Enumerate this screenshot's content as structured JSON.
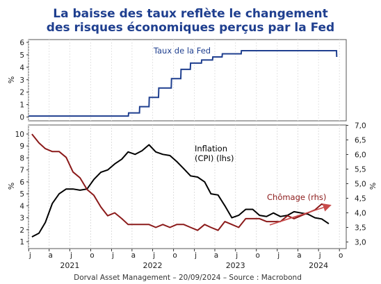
{
  "title_line1": "La baisse des taux reflète le changement",
  "title_line2": "des risques économiques perçus par la Fed",
  "source": "Dorval Asset Management – 20/09/2024 –  Source : Macrobond",
  "colors": {
    "title": "#1f3f8f",
    "fed": "#1f3f8f",
    "inflation": "#000000",
    "unemployment": "#8b1a1a",
    "arrow": "#c84b4b"
  },
  "chart_data": [
    {
      "type": "line",
      "panel": "top",
      "ylabel": "%",
      "ylim": [
        0,
        6
      ],
      "yticks": [
        0,
        1,
        2,
        3,
        4,
        5,
        6
      ],
      "series": [
        {
          "name": "Taux de la Fed",
          "points": [
            [
              "2021-01-01",
              0.08
            ],
            [
              "2022-03-16",
              0.08
            ],
            [
              "2022-03-17",
              0.33
            ],
            [
              "2022-05-04",
              0.33
            ],
            [
              "2022-05-05",
              0.83
            ],
            [
              "2022-06-15",
              0.83
            ],
            [
              "2022-06-16",
              1.58
            ],
            [
              "2022-07-27",
              1.58
            ],
            [
              "2022-07-28",
              2.33
            ],
            [
              "2022-09-21",
              2.33
            ],
            [
              "2022-09-22",
              3.08
            ],
            [
              "2022-11-02",
              3.08
            ],
            [
              "2022-11-03",
              3.83
            ],
            [
              "2022-12-14",
              3.83
            ],
            [
              "2022-12-15",
              4.33
            ],
            [
              "2023-02-01",
              4.33
            ],
            [
              "2023-02-02",
              4.58
            ],
            [
              "2023-03-22",
              4.58
            ],
            [
              "2023-03-23",
              4.83
            ],
            [
              "2023-05-03",
              4.83
            ],
            [
              "2023-05-04",
              5.08
            ],
            [
              "2023-07-26",
              5.08
            ],
            [
              "2023-07-27",
              5.33
            ],
            [
              "2024-09-18",
              5.33
            ],
            [
              "2024-09-19",
              4.83
            ]
          ]
        }
      ]
    },
    {
      "type": "line",
      "panel": "bottom",
      "ylabel": "%",
      "ylim": [
        0.5,
        10
      ],
      "yticks": [
        1,
        2,
        3,
        4,
        5,
        6,
        7,
        8,
        9,
        10
      ],
      "y2label": "%",
      "y2lim": [
        2.9,
        7.1
      ],
      "y2ticks": [
        "3,0",
        "3,5",
        "4,0",
        "4,5",
        "5,0",
        "5,5",
        "6,0",
        "6,5",
        "7,0"
      ],
      "x_month_letters": [
        "j",
        "a",
        "j",
        "o",
        "j",
        "a",
        "j",
        "o",
        "j",
        "a",
        "j",
        "o",
        "j",
        "a",
        "j",
        "o"
      ],
      "x_years": [
        "2021",
        "2022",
        "2023",
        "2024"
      ],
      "series": [
        {
          "name": "Inflation (CPI) (lhs)",
          "axis": "left",
          "x": [
            "2021-01",
            "2021-02",
            "2021-03",
            "2021-04",
            "2021-05",
            "2021-06",
            "2021-07",
            "2021-08",
            "2021-09",
            "2021-10",
            "2021-11",
            "2021-12",
            "2022-01",
            "2022-02",
            "2022-03",
            "2022-04",
            "2022-05",
            "2022-06",
            "2022-07",
            "2022-08",
            "2022-09",
            "2022-10",
            "2022-11",
            "2022-12",
            "2023-01",
            "2023-02",
            "2023-03",
            "2023-04",
            "2023-05",
            "2023-06",
            "2023-07",
            "2023-08",
            "2023-09",
            "2023-10",
            "2023-11",
            "2023-12",
            "2024-01",
            "2024-02",
            "2024-03",
            "2024-04",
            "2024-05",
            "2024-06",
            "2024-07",
            "2024-08"
          ],
          "values": [
            1.4,
            1.7,
            2.6,
            4.2,
            5.0,
            5.4,
            5.4,
            5.3,
            5.4,
            6.2,
            6.8,
            7.0,
            7.5,
            7.9,
            8.5,
            8.3,
            8.6,
            9.1,
            8.5,
            8.3,
            8.2,
            7.7,
            7.1,
            6.5,
            6.4,
            6.0,
            5.0,
            4.9,
            4.0,
            3.0,
            3.2,
            3.7,
            3.7,
            3.2,
            3.1,
            3.4,
            3.1,
            3.2,
            3.5,
            3.4,
            3.3,
            3.0,
            2.9,
            2.5
          ]
        },
        {
          "name": "Chômage (rhs)",
          "axis": "right",
          "x": [
            "2021-01",
            "2021-02",
            "2021-03",
            "2021-04",
            "2021-05",
            "2021-06",
            "2021-07",
            "2021-08",
            "2021-09",
            "2021-10",
            "2021-11",
            "2021-12",
            "2022-01",
            "2022-02",
            "2022-03",
            "2022-04",
            "2022-05",
            "2022-06",
            "2022-07",
            "2022-08",
            "2022-09",
            "2022-10",
            "2022-11",
            "2022-12",
            "2023-01",
            "2023-02",
            "2023-03",
            "2023-04",
            "2023-05",
            "2023-06",
            "2023-07",
            "2023-08",
            "2023-09",
            "2023-10",
            "2023-11",
            "2023-12",
            "2024-01",
            "2024-02",
            "2024-03",
            "2024-04",
            "2024-05",
            "2024-06",
            "2024-07",
            "2024-08"
          ],
          "values": [
            6.7,
            6.4,
            6.2,
            6.1,
            6.1,
            5.9,
            5.4,
            5.2,
            4.8,
            4.6,
            4.2,
            3.9,
            4.0,
            3.8,
            3.6,
            3.6,
            3.6,
            3.6,
            3.5,
            3.6,
            3.5,
            3.6,
            3.6,
            3.5,
            3.4,
            3.6,
            3.5,
            3.4,
            3.7,
            3.6,
            3.5,
            3.8,
            3.8,
            3.8,
            3.7,
            3.7,
            3.7,
            3.9,
            3.8,
            3.9,
            4.0,
            4.1,
            4.3,
            4.2
          ]
        }
      ]
    }
  ]
}
